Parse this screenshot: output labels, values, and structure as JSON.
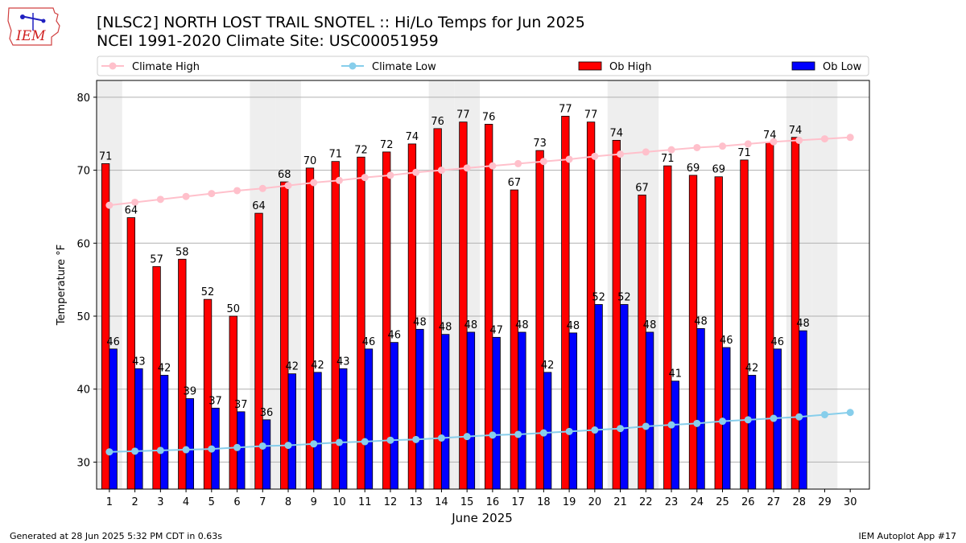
{
  "logo": {
    "text": "IEM"
  },
  "title": {
    "line1": "[NLSC2] NORTH LOST TRAIL SNOTEL :: Hi/Lo Temps for Jun 2025",
    "line2": "NCEI 1991-2020 Climate Site: USC00051959"
  },
  "footer": {
    "left": "Generated at 28 Jun 2025 5:32 PM CDT in 0.63s",
    "right": "IEM Autoplot App #17"
  },
  "colors": {
    "ob_high": "#ff0000",
    "ob_low": "#0000ff",
    "climate_high": "#ffc0cb",
    "climate_low": "#87ceeb",
    "weekend_band": "#eeeeee",
    "grid": "#b0b0b0"
  },
  "chart_data": {
    "type": "bar",
    "xlabel": "June 2025",
    "ylabel": "Temperature °F",
    "ylim": [
      26.3,
      82.3
    ],
    "yticks": [
      30,
      40,
      50,
      60,
      70,
      80
    ],
    "grid": "horizontal",
    "legend_position": "top",
    "categories": [
      "1",
      "2",
      "3",
      "4",
      "5",
      "6",
      "7",
      "8",
      "9",
      "10",
      "11",
      "12",
      "13",
      "14",
      "15",
      "16",
      "17",
      "18",
      "19",
      "20",
      "21",
      "22",
      "23",
      "24",
      "25",
      "26",
      "27",
      "28",
      "29",
      "30"
    ],
    "weekend_days": [
      1,
      7,
      8,
      14,
      15,
      21,
      22,
      28,
      29
    ],
    "series": [
      {
        "name": "Climate High",
        "kind": "line",
        "values": [
          65.2,
          65.6,
          66.0,
          66.4,
          66.8,
          67.2,
          67.5,
          67.9,
          68.3,
          68.6,
          69.0,
          69.3,
          69.7,
          70.0,
          70.3,
          70.6,
          70.9,
          71.2,
          71.5,
          71.9,
          72.2,
          72.5,
          72.8,
          73.1,
          73.3,
          73.6,
          73.9,
          74.1,
          74.3,
          74.5
        ]
      },
      {
        "name": "Climate Low",
        "kind": "line",
        "values": [
          31.4,
          31.5,
          31.6,
          31.7,
          31.8,
          32.0,
          32.2,
          32.3,
          32.5,
          32.7,
          32.8,
          33.0,
          33.1,
          33.3,
          33.5,
          33.7,
          33.8,
          34.0,
          34.2,
          34.4,
          34.6,
          34.9,
          35.1,
          35.3,
          35.6,
          35.8,
          36.0,
          36.2,
          36.5,
          36.8
        ]
      },
      {
        "name": "Ob High",
        "kind": "bar",
        "values": [
          70.9,
          63.5,
          56.8,
          57.8,
          52.3,
          50.0,
          64.1,
          68.4,
          70.3,
          71.2,
          71.8,
          72.5,
          73.6,
          75.7,
          76.6,
          76.3,
          67.3,
          72.7,
          77.4,
          76.6,
          74.1,
          66.6,
          70.6,
          69.3,
          69.1,
          71.4,
          73.8,
          74.5,
          null,
          null
        ],
        "labels": [
          "71",
          "64",
          "57",
          "58",
          "52",
          "50",
          "64",
          "68",
          "70",
          "71",
          "72",
          "72",
          "74",
          "76",
          "77",
          "76",
          "67",
          "73",
          "77",
          "77",
          "74",
          "67",
          "71",
          "69",
          "69",
          "71",
          "74",
          "74",
          "",
          ""
        ]
      },
      {
        "name": "Ob Low",
        "kind": "bar",
        "values": [
          45.5,
          42.8,
          41.9,
          38.7,
          37.4,
          36.9,
          35.8,
          42.1,
          42.3,
          42.8,
          45.5,
          46.4,
          48.2,
          47.5,
          47.8,
          47.1,
          47.8,
          42.3,
          47.7,
          51.6,
          51.6,
          47.8,
          41.1,
          48.3,
          45.7,
          41.9,
          45.5,
          48.0,
          null,
          null
        ],
        "labels": [
          "46",
          "43",
          "42",
          "39",
          "37",
          "37",
          "36",
          "42",
          "42",
          "43",
          "46",
          "46",
          "48",
          "48",
          "48",
          "47",
          "48",
          "42",
          "48",
          "52",
          "52",
          "48",
          "41",
          "48",
          "46",
          "42",
          "46",
          "48",
          "",
          ""
        ]
      }
    ]
  }
}
